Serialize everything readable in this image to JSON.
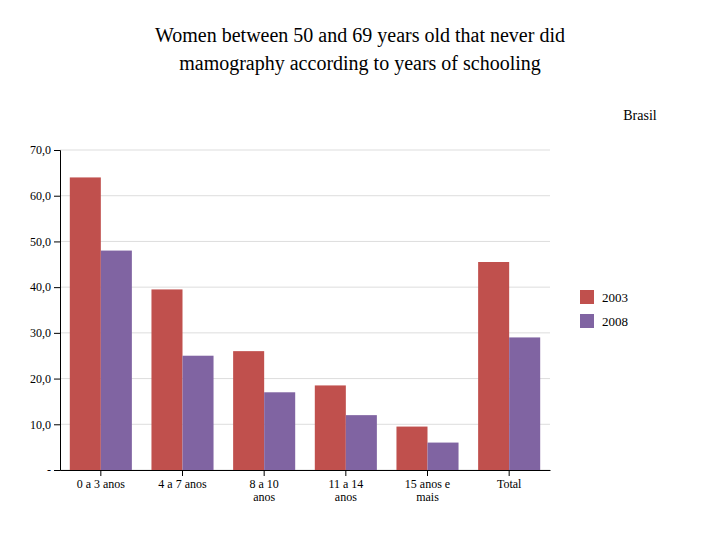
{
  "chart_data": {
    "type": "bar",
    "title": "Women between 50 and 69 years old that never did",
    "subtitle": "mamography according to years of schooling",
    "annotations": [
      "Brasil"
    ],
    "categories": [
      "0 a 3 anos",
      "4 a 7 anos",
      "8 a 10\nanos",
      "11 a 14\nanos",
      "15 anos e\nmais",
      "Total"
    ],
    "series": [
      {
        "name": "2003",
        "color": "#c0504d",
        "values": [
          64.0,
          39.5,
          26.0,
          18.5,
          9.5,
          45.5
        ]
      },
      {
        "name": "2008",
        "color": "#8064a2",
        "values": [
          48.0,
          25.0,
          17.0,
          12.0,
          6.0,
          29.0
        ]
      }
    ],
    "ylim": [
      0,
      70
    ],
    "yticks": [
      {
        "value": 0,
        "label": "-"
      },
      {
        "value": 10.0,
        "label": "10,0"
      },
      {
        "value": 20.0,
        "label": "20,0"
      },
      {
        "value": 30.0,
        "label": "30,0"
      },
      {
        "value": 40.0,
        "label": "40,0"
      },
      {
        "value": 50.0,
        "label": "50,0"
      },
      {
        "value": 60.0,
        "label": "60,0"
      },
      {
        "value": 70.0,
        "label": "70,0"
      }
    ],
    "grid": true,
    "legend": "right"
  }
}
